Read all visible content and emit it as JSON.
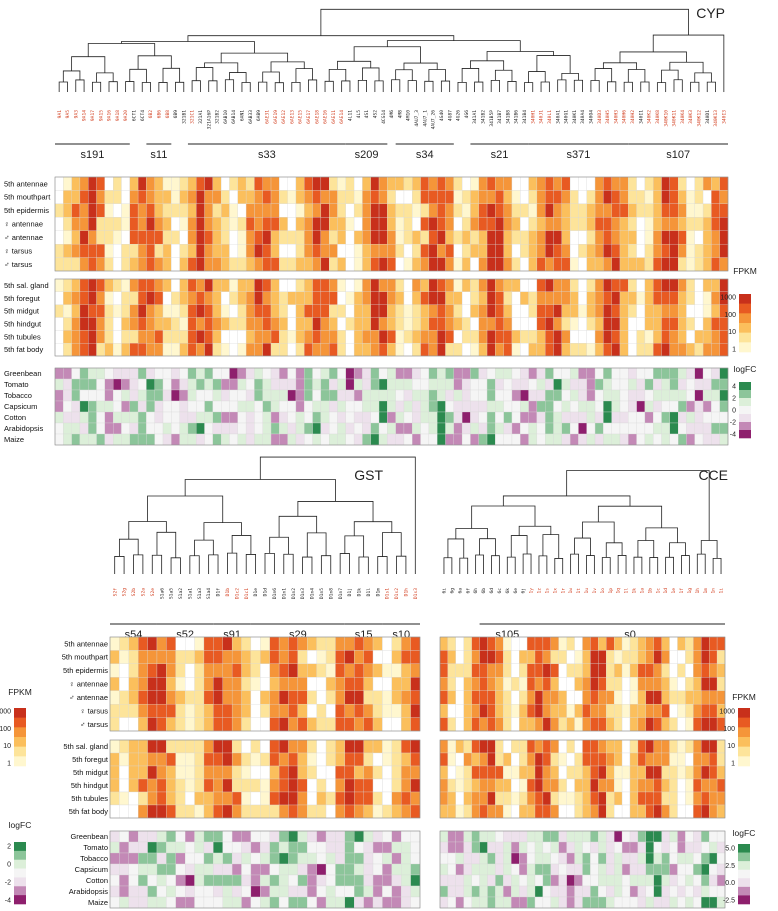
{
  "colors": {
    "fpkm": [
      "#fff7cf",
      "#fde49a",
      "#fbbf5c",
      "#f59539",
      "#e85a22",
      "#c8301b"
    ],
    "logfc": [
      "#8e1f6d",
      "#c389b6",
      "#ede1ec",
      "#f5f5f5",
      "#dcefd9",
      "#8cc59a",
      "#2b8a4f"
    ],
    "red_gene": "#d23c1c",
    "black_gene": "#222222"
  },
  "chart_data": [
    {
      "type": "heatmap",
      "title": "CYP",
      "panel": "top",
      "genes": [
        "9A1",
        "9A5",
        "9A3",
        "9A14",
        "9A17",
        "9A15",
        "9A16",
        "9A18",
        "9A20",
        "6CT1",
        "6CT4",
        "6B2",
        "6B6",
        "6B8",
        "6B9",
        "321B1",
        "321C1",
        "321A1",
        "321A16P",
        "321B2",
        "6AB10",
        "6AB14",
        "6AN1",
        "6AB33",
        "6AB9",
        "6AE31",
        "6AE19",
        "6AE12",
        "6AE13",
        "6AE15",
        "6AE17",
        "6AE18",
        "6AE16",
        "6AE11",
        "6AE14",
        "4L11",
        "4L5",
        "4S1",
        "4S2",
        "4CG14",
        "4M6",
        "4M8",
        "4M10",
        "4AU7_3",
        "4AU7_1",
        "4AU7_26",
        "4G40",
        "4G87",
        "4G26",
        "4G6",
        "341A1",
        "341B2",
        "341B5P",
        "341B7",
        "341B8",
        "341B6",
        "341B4",
        "340H1",
        "340J1",
        "340L1",
        "340A1",
        "340G1",
        "340K1",
        "340A4",
        "340O4",
        "340D3",
        "340H5",
        "340H3",
        "340H6",
        "340H2",
        "340I1",
        "340K2",
        "340K8",
        "340K10",
        "340K11",
        "340K4",
        "340K3",
        "340K12",
        "340D1",
        "340K13",
        "340I3"
      ],
      "red_genes": [
        "9A1",
        "9A5",
        "9A3",
        "9A14",
        "9A17",
        "9A15",
        "9A16",
        "9A18",
        "9A20",
        "6B2",
        "6B6",
        "6B8",
        "321C1",
        "6AE31",
        "6AE19",
        "6AE12",
        "6AE13",
        "6AE15",
        "6AE17",
        "6AE18",
        "6AE16",
        "6AE11",
        "6AE14",
        "340H1",
        "340J1",
        "340L1",
        "340D3",
        "340H5",
        "340H3",
        "340H6",
        "340H2",
        "340K2",
        "340K8",
        "340K10",
        "340K11",
        "340K4",
        "340K3",
        "340K12",
        "340K13",
        "340I3"
      ],
      "subfamilies": [
        {
          "label": "s191",
          "start": 0,
          "end": 8
        },
        {
          "label": "s11",
          "start": 11,
          "end": 13
        },
        {
          "label": "s33",
          "start": 16,
          "end": 34
        },
        {
          "label": "s209",
          "start": 35,
          "end": 39
        },
        {
          "label": "s34",
          "start": 41,
          "end": 47
        },
        {
          "label": "s21",
          "start": 50,
          "end": 56
        },
        {
          "label": "s371",
          "start": 57,
          "end": 68
        },
        {
          "label": "s107",
          "start": 69,
          "end": 80
        }
      ],
      "tissue_rows_a": [
        "5th antennae",
        "5th mouthpart",
        "5th epidermis",
        "♀ antennae",
        "♂ antennae",
        "♀ tarsus",
        "♂ tarsus"
      ],
      "tissue_rows_b": [
        "5th sal. gland",
        "5th foregut",
        "5th midgut",
        "5th hindgut",
        "5th tubules",
        "5th fat body"
      ],
      "host_rows": [
        "Greenbean",
        "Tomato",
        "Tobacco",
        "Capsicum",
        "Cotton",
        "Arabidopsis",
        "Maize"
      ]
    },
    {
      "type": "heatmap",
      "title": "GST",
      "panel": "bottom-left",
      "genes": [
        "S2f",
        "S2g",
        "S2b",
        "S2a",
        "S2e",
        "S1a6",
        "S1a5",
        "S1a2",
        "S1a1",
        "S1a3",
        "S1a4",
        "D1f",
        "D1b",
        "D1c2",
        "D1c1",
        "D1e",
        "D1d",
        "D1n6",
        "D1n1",
        "D1n2",
        "D1n3",
        "D1n4",
        "D1n5",
        "D1n8",
        "D1n7",
        "D1j",
        "D1k",
        "D1l",
        "D1m",
        "D1s1",
        "D1s2",
        "D1h",
        "D1s3"
      ],
      "red_genes": [
        "S2f",
        "S2g",
        "S2b",
        "S2a",
        "S2e",
        "D1b",
        "D1c2",
        "D1c1",
        "D1s1",
        "D1s2",
        "D1h",
        "D1s3"
      ],
      "subfamilies": [
        {
          "label": "s54",
          "start": 0,
          "end": 4
        },
        {
          "label": "s52",
          "start": 5,
          "end": 10
        },
        {
          "label": "s91",
          "start": 11,
          "end": 14
        },
        {
          "label": "s29",
          "start": 15,
          "end": 24
        },
        {
          "label": "s15",
          "start": 25,
          "end": 28
        },
        {
          "label": "s10",
          "start": 29,
          "end": 32
        }
      ],
      "tissue_rows_a": [
        "5th antennae",
        "5th mouthpart",
        "5th epidermis",
        "♀ antennae",
        "♂ antennae",
        "♀ tarsus",
        "♂ tarsus"
      ],
      "tissue_rows_b": [
        "5th sal. gland",
        "5th foregut",
        "5th midgut",
        "5th hindgut",
        "5th tubules",
        "5th fat body"
      ],
      "host_rows": [
        "Greenbean",
        "Tomato",
        "Tobacco",
        "Capsicum",
        "Cotton",
        "Arabidopsis",
        "Maize"
      ]
    },
    {
      "type": "heatmap",
      "title": "CCE",
      "panel": "bottom-right",
      "genes": [
        "6i",
        "6g",
        "6a",
        "6f",
        "6h",
        "6b",
        "6d",
        "6c",
        "6k",
        "6e",
        "6j",
        "1y",
        "1z",
        "1s",
        "1x",
        "1r",
        "1w",
        "1t",
        "1u",
        "1v",
        "1o",
        "1p",
        "1q",
        "1l",
        "1k",
        "1a",
        "1b",
        "1c",
        "1d",
        "1e",
        "1f",
        "1g",
        "1h",
        "1m",
        "1n",
        "1i"
      ],
      "red_genes": [
        "1y",
        "1z",
        "1s",
        "1x",
        "1r",
        "1w",
        "1t",
        "1u",
        "1v",
        "1o",
        "1p",
        "1q",
        "1l",
        "1k",
        "1a",
        "1b",
        "1c",
        "1d",
        "1e",
        "1f",
        "1g",
        "1h",
        "1m",
        "1n",
        "1i"
      ],
      "subfamilies": [
        {
          "label": "s105",
          "start": 5,
          "end": 11
        },
        {
          "label": "s0",
          "start": 12,
          "end": 35
        }
      ],
      "tissue_rows_a": [
        "5th antennae",
        "5th mouthpart",
        "5th epidermis",
        "♀ antennae",
        "♂ antennae",
        "♀ tarsus",
        "♂ tarsus"
      ],
      "tissue_rows_b": [
        "5th sal. gland",
        "5th foregut",
        "5th midgut",
        "5th hindgut",
        "5th tubules",
        "5th fat body"
      ],
      "host_rows": [
        "Greenbean",
        "Tomato",
        "Tobacco",
        "Capsicum",
        "Cotton",
        "Arabidopsis",
        "Maize"
      ]
    }
  ],
  "legends": {
    "fpkm": {
      "title": "FPKM",
      "ticks": [
        "1000",
        "100",
        "10",
        "1"
      ]
    },
    "logfc_cyp": {
      "title": "logFC",
      "ticks": [
        "4",
        "2",
        "0",
        "-2",
        "-4"
      ]
    },
    "logfc_gst": {
      "title": "logFC",
      "ticks": [
        "2",
        "0",
        "-2",
        "-4"
      ]
    },
    "logfc_cce": {
      "title": "logFC",
      "ticks": [
        "5.0",
        "2.5",
        "0.0",
        "-2.5"
      ]
    }
  }
}
